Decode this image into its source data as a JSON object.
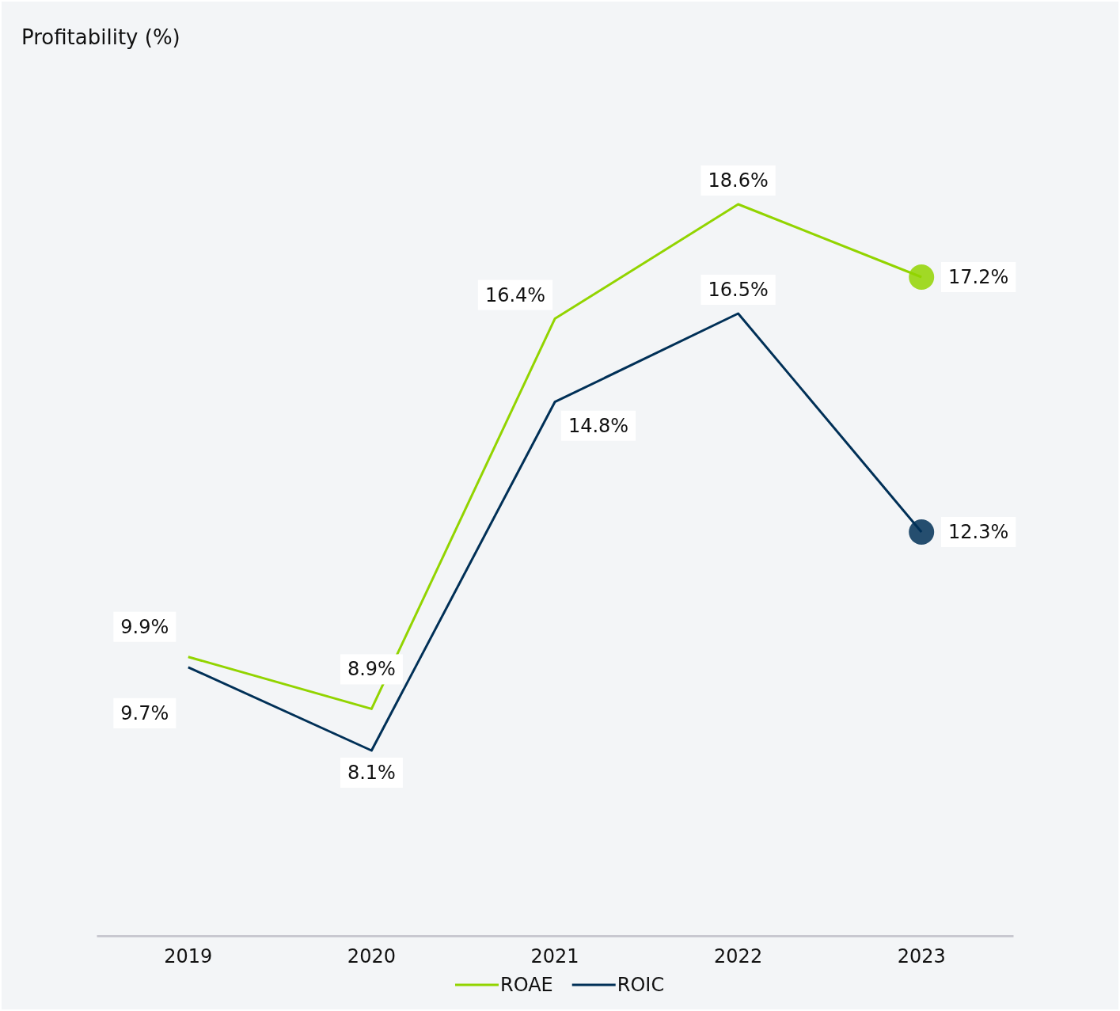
{
  "chart_data": {
    "type": "line",
    "title": "Profitability (%)",
    "categories": [
      "2019",
      "2020",
      "2021",
      "2022",
      "2023"
    ],
    "series": [
      {
        "name": "ROAE",
        "color": "#92d400",
        "values": [
          9.9,
          8.9,
          16.4,
          18.6,
          17.2
        ],
        "value_labels": [
          "9.9%",
          "8.9%",
          "16.4%",
          "18.6%",
          "17.2%"
        ]
      },
      {
        "name": "ROIC",
        "color": "#003057",
        "values": [
          9.7,
          8.1,
          14.8,
          16.5,
          12.3
        ],
        "value_labels": [
          "9.7%",
          "8.1%",
          "14.8%",
          "16.5%",
          "12.3%"
        ]
      }
    ],
    "legend": "bottom"
  }
}
